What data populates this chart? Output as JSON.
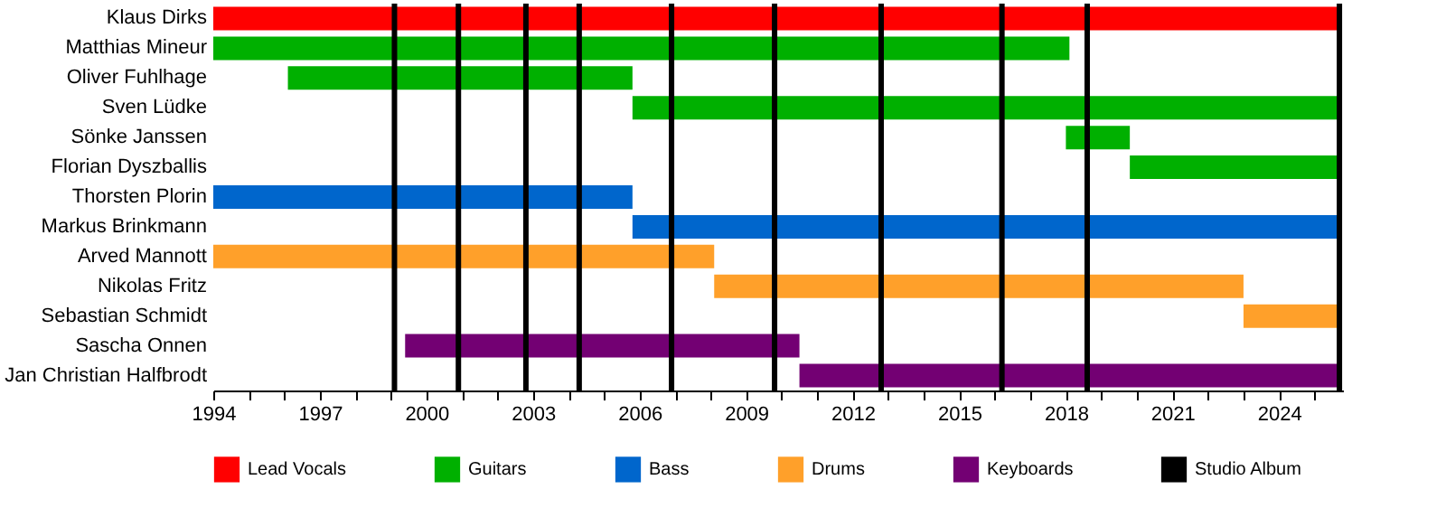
{
  "chart_data": {
    "type": "bar",
    "orientation": "horizontal",
    "legend": "bottom",
    "categories": [
      "Klaus Dirks",
      "Matthias Mineur",
      "Oliver Fuhlhage",
      "Sven Lüdke",
      "Sönke Janssen",
      "Florian Dyszballis",
      "Thorsten Plorin",
      "Markus Brinkmann",
      "Arved Mannott",
      "Nikolas Fritz",
      "Sebastian Schmidt",
      "Sascha Onnen",
      "Jan Christian Halfbrodt"
    ],
    "series": [
      {
        "name": "Lead Vocals",
        "color": "#ff0000",
        "base": [
          1994,
          null,
          null,
          null,
          null,
          null,
          null,
          null,
          null,
          null,
          null,
          null,
          null
        ],
        "values": [
          31.7,
          null,
          null,
          null,
          null,
          null,
          null,
          null,
          null,
          null,
          null,
          null,
          null
        ]
      },
      {
        "name": "Guitars",
        "color": "#00b000",
        "base": [
          null,
          1994,
          1996.1,
          2005.8,
          2018.0,
          2019.8,
          null,
          null,
          null,
          null,
          null,
          null,
          null
        ],
        "values": [
          null,
          24.1,
          9.7,
          19.9,
          1.8,
          5.9,
          null,
          null,
          null,
          null,
          null,
          null,
          null
        ]
      },
      {
        "name": "Bass",
        "color": "#0066cc",
        "base": [
          null,
          null,
          null,
          null,
          null,
          null,
          1994,
          2005.8,
          null,
          null,
          null,
          null,
          null
        ],
        "values": [
          null,
          null,
          null,
          null,
          null,
          null,
          11.8,
          19.9,
          null,
          null,
          null,
          null,
          null
        ]
      },
      {
        "name": "Drums",
        "color": "#ffa02a",
        "base": [
          null,
          null,
          null,
          null,
          null,
          null,
          null,
          null,
          1994,
          2008.1,
          2023.0,
          null,
          null
        ],
        "values": [
          null,
          null,
          null,
          null,
          null,
          null,
          null,
          null,
          14.1,
          14.9,
          2.7,
          null,
          null
        ]
      },
      {
        "name": "Keyboards",
        "color": "#730073",
        "base": [
          null,
          null,
          null,
          null,
          null,
          null,
          null,
          null,
          null,
          null,
          null,
          1999.4,
          2010.5
        ],
        "values": [
          null,
          null,
          null,
          null,
          null,
          null,
          null,
          null,
          null,
          null,
          null,
          11.1,
          15.2
        ]
      }
    ],
    "ref_lines": [
      {
        "axis": "x",
        "value": 1999.1,
        "label": "Studio Album",
        "color": "#000000"
      },
      {
        "axis": "x",
        "value": 2000.9,
        "color": "#000000"
      },
      {
        "axis": "x",
        "value": 2002.8,
        "color": "#000000"
      },
      {
        "axis": "x",
        "value": 2004.3,
        "color": "#000000"
      },
      {
        "axis": "x",
        "value": 2006.9,
        "color": "#000000"
      },
      {
        "axis": "x",
        "value": 2009.8,
        "color": "#000000"
      },
      {
        "axis": "x",
        "value": 2012.8,
        "color": "#000000"
      },
      {
        "axis": "x",
        "value": 2016.2,
        "color": "#000000"
      },
      {
        "axis": "x",
        "value": 2018.6,
        "color": "#000000"
      },
      {
        "axis": "x",
        "value": 2025.7,
        "color": "#000000"
      }
    ],
    "xlim": [
      1994,
      2025.8
    ],
    "xticks": [
      1994,
      {
        "value": 1995,
        "label": null
      },
      {
        "value": 1996,
        "label": null
      },
      1997,
      {
        "value": 1998,
        "label": null
      },
      {
        "value": 1999,
        "label": null
      },
      2000,
      {
        "value": 2001,
        "label": null
      },
      {
        "value": 2002,
        "label": null
      },
      2003,
      {
        "value": 2004,
        "label": null
      },
      {
        "value": 2005,
        "label": null
      },
      2006,
      {
        "value": 2007,
        "label": null
      },
      {
        "value": 2008,
        "label": null
      },
      2009,
      {
        "value": 2010,
        "label": null
      },
      {
        "value": 2011,
        "label": null
      },
      2012,
      {
        "value": 2013,
        "label": null
      },
      {
        "value": 2014,
        "label": null
      },
      2015,
      {
        "value": 2016,
        "label": null
      },
      {
        "value": 2017,
        "label": null
      },
      2018,
      {
        "value": 2019,
        "label": null
      },
      {
        "value": 2020,
        "label": null
      },
      2021,
      {
        "value": 2022,
        "label": null
      },
      {
        "value": 2023,
        "label": null
      },
      2024,
      {
        "value": 2025,
        "label": null
      }
    ]
  }
}
